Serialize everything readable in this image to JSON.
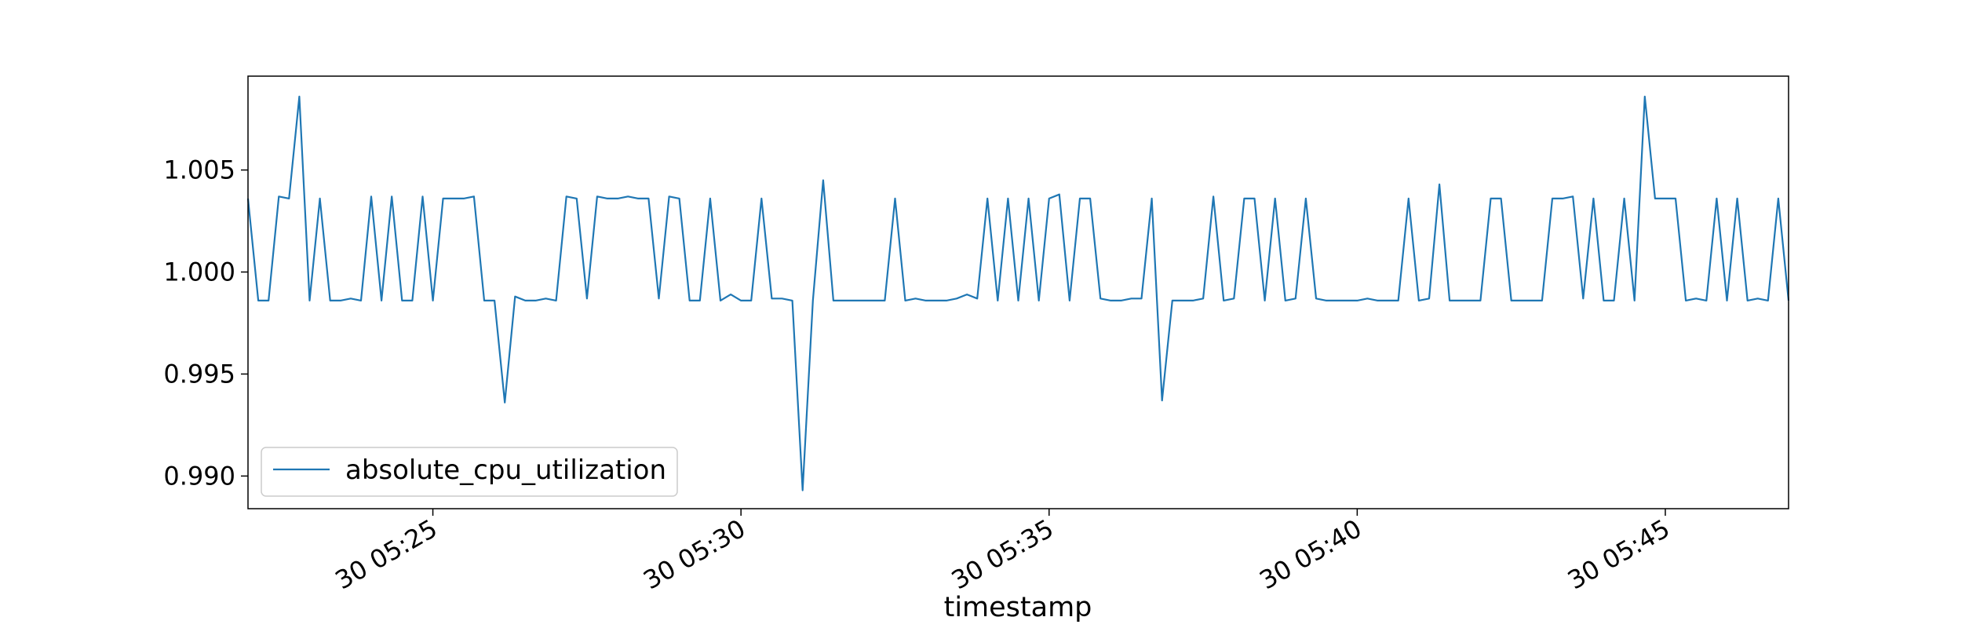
{
  "chart_data": {
    "type": "line",
    "title": "",
    "xlabel": "timestamp",
    "ylabel": "",
    "ylim": [
      0.9884,
      1.0096
    ],
    "yticks": [
      0.99,
      0.995,
      1.0,
      1.005
    ],
    "ytick_labels": [
      "0.990",
      "0.995",
      "1.000",
      "1.005"
    ],
    "xlim": [
      "05:22:00",
      "05:47:00"
    ],
    "xticks": [
      "05:25:00",
      "05:30:00",
      "05:35:00",
      "05:40:00",
      "05:45:00"
    ],
    "xtick_labels": [
      "30 05:25",
      "30 05:30",
      "30 05:35",
      "30 05:40",
      "30 05:45"
    ],
    "grid": false,
    "legend_position": "lower-left",
    "series": [
      {
        "name": "absolute_cpu_utilization",
        "color": "#1f77b4",
        "x": [
          "05:22:00",
          "05:22:10",
          "05:22:20",
          "05:22:30",
          "05:22:40",
          "05:22:50",
          "05:23:00",
          "05:23:10",
          "05:23:20",
          "05:23:30",
          "05:23:40",
          "05:23:50",
          "05:24:00",
          "05:24:10",
          "05:24:20",
          "05:24:30",
          "05:24:40",
          "05:24:50",
          "05:25:00",
          "05:25:10",
          "05:25:20",
          "05:25:30",
          "05:25:40",
          "05:25:50",
          "05:26:00",
          "05:26:10",
          "05:26:20",
          "05:26:30",
          "05:26:40",
          "05:26:50",
          "05:27:00",
          "05:27:10",
          "05:27:20",
          "05:27:30",
          "05:27:40",
          "05:27:50",
          "05:28:00",
          "05:28:10",
          "05:28:20",
          "05:28:30",
          "05:28:40",
          "05:28:50",
          "05:29:00",
          "05:29:10",
          "05:29:20",
          "05:29:30",
          "05:29:40",
          "05:29:50",
          "05:30:00",
          "05:30:10",
          "05:30:20",
          "05:30:30",
          "05:30:40",
          "05:30:50",
          "05:31:00",
          "05:31:10",
          "05:31:20",
          "05:31:30",
          "05:31:40",
          "05:31:50",
          "05:32:00",
          "05:32:10",
          "05:32:20",
          "05:32:30",
          "05:32:40",
          "05:32:50",
          "05:33:00",
          "05:33:10",
          "05:33:20",
          "05:33:30",
          "05:33:40",
          "05:33:50",
          "05:34:00",
          "05:34:10",
          "05:34:20",
          "05:34:30",
          "05:34:40",
          "05:34:50",
          "05:35:00",
          "05:35:10",
          "05:35:20",
          "05:35:30",
          "05:35:40",
          "05:35:50",
          "05:36:00",
          "05:36:10",
          "05:36:20",
          "05:36:30",
          "05:36:40",
          "05:36:50",
          "05:37:00",
          "05:37:10",
          "05:37:20",
          "05:37:30",
          "05:37:40",
          "05:37:50",
          "05:38:00",
          "05:38:10",
          "05:38:20",
          "05:38:30",
          "05:38:40",
          "05:38:50",
          "05:39:00",
          "05:39:10",
          "05:39:20",
          "05:39:30",
          "05:39:40",
          "05:39:50",
          "05:40:00",
          "05:40:10",
          "05:40:20",
          "05:40:30",
          "05:40:40",
          "05:40:50",
          "05:41:00",
          "05:41:10",
          "05:41:20",
          "05:41:30",
          "05:41:40",
          "05:41:50",
          "05:42:00",
          "05:42:10",
          "05:42:20",
          "05:42:30",
          "05:42:40",
          "05:42:50",
          "05:43:00",
          "05:43:10",
          "05:43:20",
          "05:43:30",
          "05:43:40",
          "05:43:50",
          "05:44:00",
          "05:44:10",
          "05:44:20",
          "05:44:30",
          "05:44:40",
          "05:44:50",
          "05:45:00",
          "05:45:10",
          "05:45:20",
          "05:45:30",
          "05:45:40",
          "05:45:50",
          "05:46:00",
          "05:46:10",
          "05:46:20",
          "05:46:30",
          "05:46:40",
          "05:46:50",
          "05:47:00"
        ],
        "y": [
          1.0036,
          0.9986,
          0.9986,
          1.0037,
          1.0036,
          1.0086,
          0.9986,
          1.0036,
          0.9986,
          0.9986,
          0.9987,
          0.9986,
          1.0037,
          0.9986,
          1.0037,
          0.9986,
          0.9986,
          1.0037,
          0.9986,
          1.0036,
          1.0036,
          1.0036,
          1.0037,
          0.9986,
          0.9986,
          0.9936,
          0.9988,
          0.9986,
          0.9986,
          0.9987,
          0.9986,
          1.0037,
          1.0036,
          0.9987,
          1.0037,
          1.0036,
          1.0036,
          1.0037,
          1.0036,
          1.0036,
          0.9987,
          1.0037,
          1.0036,
          0.9986,
          0.9986,
          1.0036,
          0.9986,
          0.9989,
          0.9986,
          0.9986,
          1.0036,
          0.9987,
          0.9987,
          0.9986,
          0.9893,
          0.9986,
          1.0045,
          0.9986,
          0.9986,
          0.9986,
          0.9986,
          0.9986,
          0.9986,
          1.0036,
          0.9986,
          0.9987,
          0.9986,
          0.9986,
          0.9986,
          0.9987,
          0.9989,
          0.9987,
          1.0036,
          0.9986,
          1.0036,
          0.9986,
          1.0036,
          0.9986,
          1.0036,
          1.0038,
          0.9986,
          1.0036,
          1.0036,
          0.9987,
          0.9986,
          0.9986,
          0.9987,
          0.9987,
          1.0036,
          0.9937,
          0.9986,
          0.9986,
          0.9986,
          0.9987,
          1.0037,
          0.9986,
          0.9987,
          1.0036,
          1.0036,
          0.9986,
          1.0036,
          0.9986,
          0.9987,
          1.0036,
          0.9987,
          0.9986,
          0.9986,
          0.9986,
          0.9986,
          0.9987,
          0.9986,
          0.9986,
          0.9986,
          1.0036,
          0.9986,
          0.9987,
          1.0043,
          0.9986,
          0.9986,
          0.9986,
          0.9986,
          1.0036,
          1.0036,
          0.9986,
          0.9986,
          0.9986,
          0.9986,
          1.0036,
          1.0036,
          1.0037,
          0.9987,
          1.0036,
          0.9986,
          0.9986,
          1.0036,
          0.9986,
          1.0086,
          1.0036,
          1.0036,
          1.0036,
          0.9986,
          0.9987,
          0.9986,
          1.0036,
          0.9986,
          1.0036,
          0.9986,
          0.9987,
          0.9986,
          1.0036,
          0.9986
        ]
      }
    ]
  }
}
